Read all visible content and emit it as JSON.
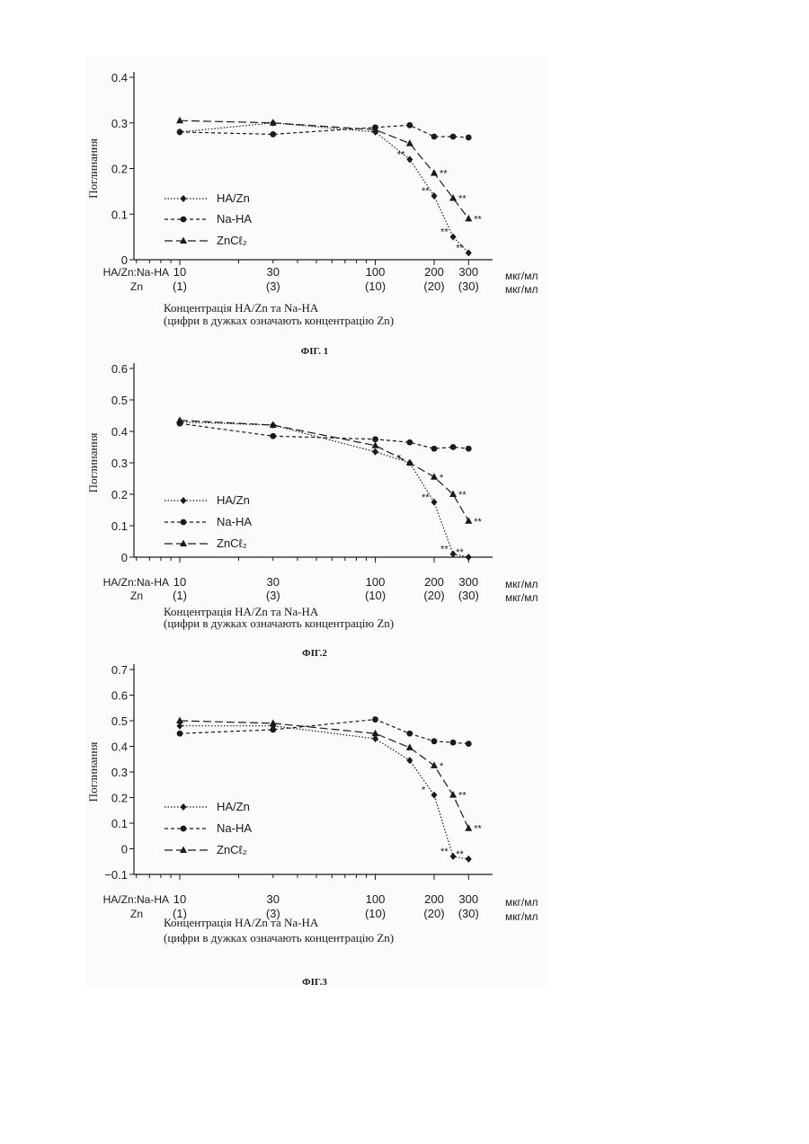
{
  "page": {
    "header_rows": {
      "ratio": "HA/Zn:Na-HA",
      "zn": "Zn"
    },
    "legend": {
      "hazn": "HA/Zn",
      "naha": "Na-HA",
      "zncl": "ZnCℓ₂"
    },
    "units": {
      "primary": "мкг/мл",
      "secondary": "мкг/мл"
    },
    "caption_line1": "Концентрація HA/Zn та Na-HA",
    "caption_line2": "(цифри в дужках означають концентрацію Zn)",
    "colors": {
      "ink": "#1a1a1a",
      "scan": "#fbfbfb"
    }
  },
  "chart_data": [
    {
      "type": "line",
      "figure": "ФІГ. 1",
      "ylabel": "Поглинання",
      "ylim": [
        0,
        0.4
      ],
      "y_ticks": [
        "0",
        "0.1",
        "0.2",
        "0.3",
        "0.4"
      ],
      "x_scale": "log",
      "x_ticks": [
        {
          "x": 10,
          "label": "10",
          "sub": "(1)"
        },
        {
          "x": 30,
          "label": "30",
          "sub": "(3)"
        },
        {
          "x": 100,
          "label": "100",
          "sub": "(10)"
        },
        {
          "x": 200,
          "label": "200",
          "sub": "(20)"
        },
        {
          "x": 300,
          "label": "300",
          "sub": "(30)"
        }
      ],
      "series": [
        {
          "name": "HA/Zn",
          "marker": "diamond",
          "dash": "dotted",
          "points": [
            [
              10,
              0.28
            ],
            [
              30,
              0.3
            ],
            [
              100,
              0.28
            ],
            [
              150,
              0.22
            ],
            [
              200,
              0.14
            ],
            [
              250,
              0.05
            ],
            [
              300,
              0.015
            ]
          ],
          "signif": [
            null,
            null,
            null,
            "**",
            "**",
            "**",
            "**"
          ]
        },
        {
          "name": "Na-HA",
          "marker": "circle",
          "dash": "short",
          "points": [
            [
              10,
              0.28
            ],
            [
              30,
              0.275
            ],
            [
              100,
              0.29
            ],
            [
              150,
              0.295
            ],
            [
              200,
              0.27
            ],
            [
              250,
              0.27
            ],
            [
              300,
              0.268
            ]
          ],
          "signif": [
            null,
            null,
            null,
            null,
            null,
            null,
            null
          ]
        },
        {
          "name": "ZnCℓ₂",
          "marker": "triangle",
          "dash": "long",
          "points": [
            [
              10,
              0.305
            ],
            [
              30,
              0.3
            ],
            [
              100,
              0.285
            ],
            [
              150,
              0.255
            ],
            [
              200,
              0.19
            ],
            [
              250,
              0.135
            ],
            [
              300,
              0.09
            ]
          ],
          "signif": [
            null,
            null,
            null,
            null,
            "**",
            "**",
            "**"
          ]
        }
      ]
    },
    {
      "type": "line",
      "figure": "ФІГ.2",
      "ylabel": "Поглинання",
      "ylim": [
        0,
        0.6
      ],
      "y_ticks": [
        "0",
        "0.1",
        "0.2",
        "0.3",
        "0.4",
        "0.5",
        "0.6"
      ],
      "x_scale": "log",
      "x_ticks": [
        {
          "x": 10,
          "label": "10",
          "sub": "(1)"
        },
        {
          "x": 30,
          "label": "30",
          "sub": "(3)"
        },
        {
          "x": 100,
          "label": "100",
          "sub": "(10)"
        },
        {
          "x": 200,
          "label": "200",
          "sub": "(20)"
        },
        {
          "x": 300,
          "label": "300",
          "sub": "(30)"
        }
      ],
      "series": [
        {
          "name": "HA/Zn",
          "marker": "diamond",
          "dash": "dotted",
          "points": [
            [
              10,
              0.43
            ],
            [
              30,
              0.42
            ],
            [
              100,
              0.335
            ],
            [
              150,
              0.3
            ],
            [
              200,
              0.175
            ],
            [
              250,
              0.01
            ],
            [
              300,
              0.0
            ]
          ],
          "signif": [
            null,
            null,
            null,
            "*",
            "**",
            "**",
            "**"
          ]
        },
        {
          "name": "Na-HA",
          "marker": "circle",
          "dash": "short",
          "points": [
            [
              10,
              0.425
            ],
            [
              30,
              0.385
            ],
            [
              100,
              0.375
            ],
            [
              150,
              0.365
            ],
            [
              200,
              0.345
            ],
            [
              250,
              0.35
            ],
            [
              300,
              0.345
            ]
          ],
          "signif": [
            null,
            null,
            null,
            null,
            null,
            null,
            null
          ]
        },
        {
          "name": "ZnCℓ₂",
          "marker": "triangle",
          "dash": "long",
          "points": [
            [
              10,
              0.435
            ],
            [
              30,
              0.42
            ],
            [
              100,
              0.355
            ],
            [
              150,
              0.3
            ],
            [
              200,
              0.255
            ],
            [
              250,
              0.2
            ],
            [
              300,
              0.115
            ]
          ],
          "signif": [
            null,
            null,
            null,
            null,
            "*",
            "**",
            "**"
          ]
        }
      ]
    },
    {
      "type": "line",
      "figure": "ФІГ.3",
      "ylabel": "Поглинання",
      "ylim": [
        -0.1,
        0.7
      ],
      "y_ticks": [
        "−0.1",
        "0",
        "0.1",
        "0.2",
        "0.3",
        "0.4",
        "0.5",
        "0.6",
        "0.7"
      ],
      "x_scale": "log",
      "x_ticks": [
        {
          "x": 10,
          "label": "10",
          "sub": "(1)"
        },
        {
          "x": 30,
          "label": "30",
          "sub": "(3)"
        },
        {
          "x": 100,
          "label": "100",
          "sub": "(10)"
        },
        {
          "x": 200,
          "label": "200",
          "sub": "(20)"
        },
        {
          "x": 300,
          "label": "300",
          "sub": "(30)"
        }
      ],
      "series": [
        {
          "name": "HA/Zn",
          "marker": "diamond",
          "dash": "dotted",
          "points": [
            [
              10,
              0.48
            ],
            [
              30,
              0.48
            ],
            [
              100,
              0.43
            ],
            [
              150,
              0.345
            ],
            [
              200,
              0.21
            ],
            [
              250,
              -0.03
            ],
            [
              300,
              -0.04
            ]
          ],
          "signif": [
            null,
            null,
            null,
            null,
            "*",
            "**",
            "**"
          ]
        },
        {
          "name": "Na-HA",
          "marker": "circle",
          "dash": "short",
          "points": [
            [
              10,
              0.45
            ],
            [
              30,
              0.465
            ],
            [
              100,
              0.505
            ],
            [
              150,
              0.45
            ],
            [
              200,
              0.42
            ],
            [
              250,
              0.415
            ],
            [
              300,
              0.41
            ]
          ],
          "signif": [
            null,
            null,
            null,
            null,
            null,
            null,
            null
          ]
        },
        {
          "name": "ZnCℓ₂",
          "marker": "triangle",
          "dash": "long",
          "points": [
            [
              10,
              0.5
            ],
            [
              30,
              0.49
            ],
            [
              100,
              0.45
            ],
            [
              150,
              0.395
            ],
            [
              200,
              0.325
            ],
            [
              250,
              0.21
            ],
            [
              300,
              0.08
            ]
          ],
          "signif": [
            null,
            null,
            null,
            null,
            "*",
            "**",
            "**"
          ]
        }
      ]
    }
  ]
}
